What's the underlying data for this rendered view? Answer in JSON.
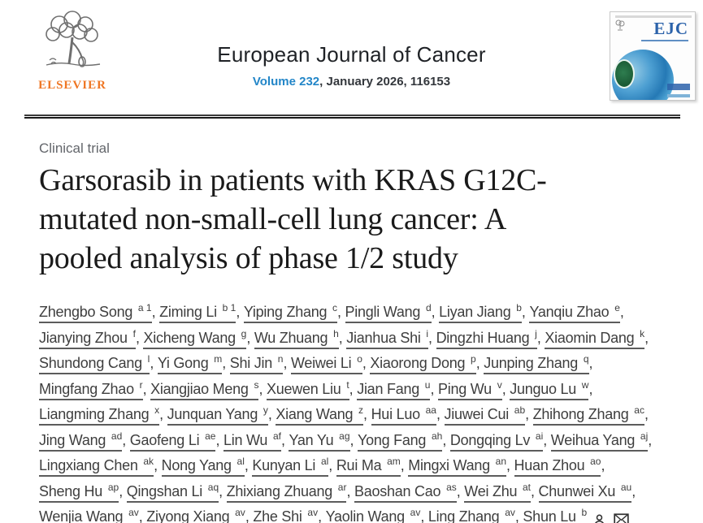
{
  "header": {
    "publisher_wordmark": "ELSEVIER",
    "journal_title": "European Journal of Cancer",
    "volume_link": "Volume 232",
    "issue_info": ", January 2026, 116153",
    "cover_title": "EJC"
  },
  "article": {
    "category": "Clinical trial",
    "title_lines": [
      "Garsorasib in patients with KRAS G12C-",
      "mutated non-small-cell lung cancer: A",
      "pooled analysis of phase 1/2 study"
    ],
    "title_full": "Garsorasib in patients with KRAS G12C-mutated non-small-cell lung cancer: A pooled analysis of phase 1/2 study"
  },
  "authors": {
    "lines": [
      [
        {
          "name": "Zhengbo Song",
          "sup": "a 1"
        },
        {
          "name": "Ziming Li",
          "sup": "b 1"
        },
        {
          "name": "Yiping Zhang",
          "sup": "c"
        },
        {
          "name": "Pingli Wang",
          "sup": "d"
        },
        {
          "name": "Liyan Jiang",
          "sup": "b"
        },
        {
          "name": "Yanqiu Zhao",
          "sup": "e"
        }
      ],
      [
        {
          "name": "Jianying Zhou",
          "sup": "f"
        },
        {
          "name": "Xicheng Wang",
          "sup": "g"
        },
        {
          "name": "Wu Zhuang",
          "sup": "h"
        },
        {
          "name": "Jianhua Shi",
          "sup": "i"
        },
        {
          "name": "Dingzhi Huang",
          "sup": "j"
        },
        {
          "name": "Xiaomin Dang",
          "sup": "k"
        }
      ],
      [
        {
          "name": "Shundong Cang",
          "sup": "l"
        },
        {
          "name": "Yi Gong",
          "sup": "m"
        },
        {
          "name": "Shi Jin",
          "sup": "n"
        },
        {
          "name": "Weiwei Li",
          "sup": "o"
        },
        {
          "name": "Xiaorong Dong",
          "sup": "p"
        },
        {
          "name": "Junping Zhang",
          "sup": "q"
        }
      ],
      [
        {
          "name": "Mingfang Zhao",
          "sup": "r"
        },
        {
          "name": "Xiangjiao Meng",
          "sup": "s"
        },
        {
          "name": "Xuewen Liu",
          "sup": "t"
        },
        {
          "name": "Jian Fang",
          "sup": "u"
        },
        {
          "name": "Ping Wu",
          "sup": "v"
        },
        {
          "name": "Junguo Lu",
          "sup": "w"
        }
      ],
      [
        {
          "name": "Liangming Zhang",
          "sup": "x"
        },
        {
          "name": "Junquan Yang",
          "sup": "y"
        },
        {
          "name": "Xiang Wang",
          "sup": "z"
        },
        {
          "name": "Hui Luo",
          "sup": "aa"
        },
        {
          "name": "Jiuwei Cui",
          "sup": "ab"
        },
        {
          "name": "Zhihong Zhang",
          "sup": "ac"
        }
      ],
      [
        {
          "name": "Jing Wang",
          "sup": "ad"
        },
        {
          "name": "Gaofeng Li",
          "sup": "ae"
        },
        {
          "name": "Lin Wu",
          "sup": "af"
        },
        {
          "name": "Yan Yu",
          "sup": "ag"
        },
        {
          "name": "Yong Fang",
          "sup": "ah"
        },
        {
          "name": "Dongqing Lv",
          "sup": "ai"
        },
        {
          "name": "Weihua Yang",
          "sup": "aj"
        }
      ],
      [
        {
          "name": "Lingxiang Chen",
          "sup": "ak"
        },
        {
          "name": "Nong Yang",
          "sup": "al"
        },
        {
          "name": "Kunyan Li",
          "sup": "al"
        },
        {
          "name": "Rui Ma",
          "sup": "am"
        },
        {
          "name": "Mingxi Wang",
          "sup": "an"
        },
        {
          "name": "Huan Zhou",
          "sup": "ao"
        }
      ],
      [
        {
          "name": "Sheng Hu",
          "sup": "ap"
        },
        {
          "name": "Qingshan Li",
          "sup": "aq"
        },
        {
          "name": "Zhixiang Zhuang",
          "sup": "ar"
        },
        {
          "name": "Baoshan Cao",
          "sup": "as"
        },
        {
          "name": "Wei Zhu",
          "sup": "at"
        },
        {
          "name": "Chunwei Xu",
          "sup": "au"
        }
      ],
      [
        {
          "name": "Wenjia Wang",
          "sup": "av"
        },
        {
          "name": "Ziyong Xiang",
          "sup": "av"
        },
        {
          "name": "Zhe Shi",
          "sup": "av"
        },
        {
          "name": "Yaolin Wang",
          "sup": "av"
        },
        {
          "name": "Ling Zhang",
          "sup": "av"
        },
        {
          "name": "Shun Lu",
          "sup": "b"
        }
      ]
    ],
    "corresponding_icons": [
      "person-icon",
      "envelope-icon"
    ]
  },
  "colors": {
    "link_blue": "#2386c8",
    "elsevier_orange": "#ef7623",
    "cover_blue": "#2b62aa",
    "rule_dark": "#191919",
    "author_gray": "#3e3e3e"
  }
}
